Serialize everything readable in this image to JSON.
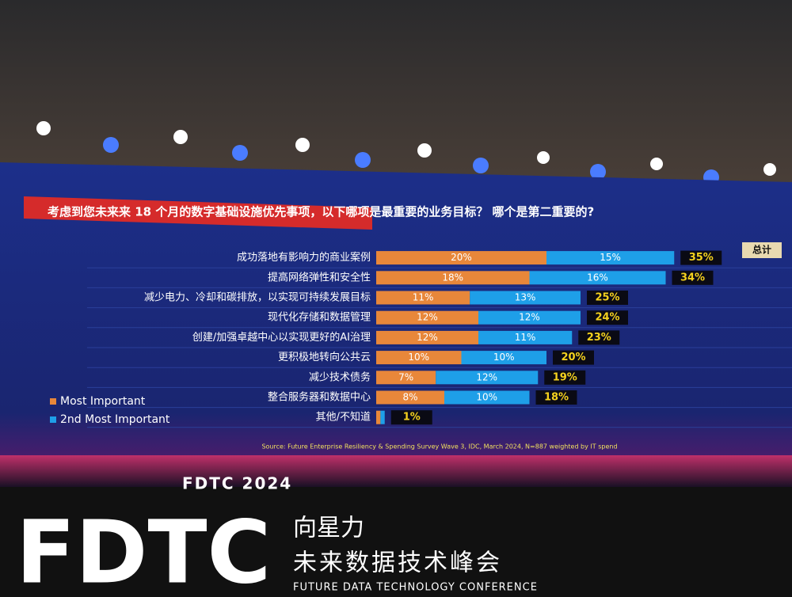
{
  "chart_data": {
    "type": "stacked-bar-horizontal",
    "title": "考虑到您未来来 18 个月的数字基础设施优先事项，以下哪项是最重要的业务目标？ 哪个是第二重要的?",
    "categories": [
      "成功落地有影响力的商业案例",
      "提高网络弹性和安全性",
      "减少电力、冷却和碳排放，以实现可持续发展目标",
      "现代化存储和数据管理",
      "创建/加强卓越中心以实现更好的AI治理",
      "更积极地转向公共云",
      "减少技术债务",
      "整合服务器和数据中心",
      "其他/不知道"
    ],
    "series": [
      {
        "name": "Most Important",
        "color": "#e8873a",
        "values": [
          20,
          18,
          11,
          12,
          12,
          10,
          7,
          8,
          0.5
        ],
        "value_labels": [
          "20%",
          "18%",
          "11%",
          "12%",
          "12%",
          "10%",
          "7%",
          "8%",
          null
        ]
      },
      {
        "name": "2nd Most Important",
        "color": "#1e9fe8",
        "values": [
          15,
          16,
          13,
          12,
          11,
          10,
          12,
          10,
          0.5
        ],
        "value_labels": [
          "15%",
          "16%",
          "13%",
          "12%",
          "11%",
          "10%",
          "12%",
          "10%",
          null
        ]
      }
    ],
    "total_header": "总计",
    "total_values": [
      35,
      34,
      25,
      24,
      23,
      20,
      19,
      18,
      1
    ],
    "total_labels": [
      "35%",
      "34%",
      "25%",
      "24%",
      "23%",
      "20%",
      "19%",
      "18%",
      "1%"
    ],
    "xlim": [
      0,
      40
    ],
    "legend": "lower-left",
    "source": "Source: Future Enterprise Resiliency & Spending Survey Wave 3, IDC, March 2024, N=887 weighted by IT spend"
  },
  "stage": {
    "screen_logo": "FDTC 2024",
    "logo": "FDTC",
    "name_line1": "向星力",
    "name_line2": "未来数据技术峰会",
    "name_en": "FUTURE DATA TECHNOLOGY CONFERENCE"
  }
}
